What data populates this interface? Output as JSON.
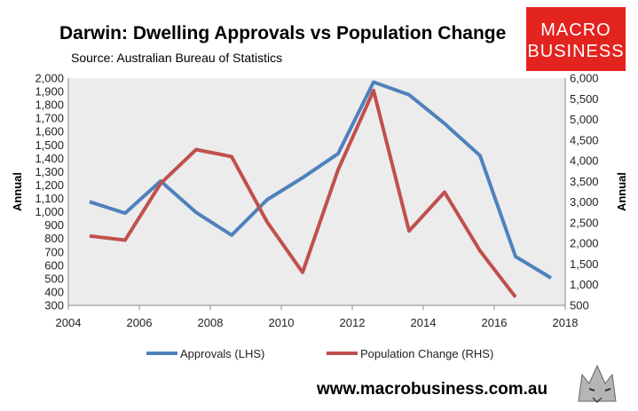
{
  "chart_data": {
    "type": "line",
    "title": "Darwin: Dwelling Approvals vs Population Change",
    "subtitle": "Source: Australian Bureau of Statistics",
    "ylabel_left": "Annual",
    "ylabel_right": "Annual",
    "x_ticks": [
      "2004",
      "2006",
      "2008",
      "2010",
      "2012",
      "2014",
      "2016",
      "2018"
    ],
    "x_range": [
      2004,
      2018
    ],
    "y_left_ticks": [
      "2,000",
      "1,900",
      "1,800",
      "1,700",
      "1,600",
      "1,500",
      "1,400",
      "1,300",
      "1,200",
      "1,100",
      "1,000",
      "900",
      "800",
      "700",
      "600",
      "500",
      "400",
      "300"
    ],
    "y_left_range": [
      300,
      2000
    ],
    "y_right_ticks": [
      "6,000",
      "5,500",
      "5,000",
      "4,500",
      "4,000",
      "3,500",
      "3,000",
      "2,500",
      "2,000",
      "1,500",
      "1,000",
      "500"
    ],
    "y_right_range": [
      500,
      6000
    ],
    "series": [
      {
        "name": "Approvals (LHS)",
        "axis": "left",
        "color": "#4f81bd",
        "x": [
          2004.6,
          2005.6,
          2006.6,
          2007.6,
          2008.6,
          2009.6,
          2010.6,
          2011.6,
          2012.6,
          2013.6,
          2014.6,
          2015.6,
          2016.6,
          2017.6
        ],
        "values": [
          1075,
          990,
          1230,
          995,
          825,
          1090,
          1255,
          1435,
          1970,
          1875,
          1660,
          1420,
          665,
          505
        ]
      },
      {
        "name": "Population Change (RHS)",
        "axis": "right",
        "color": "#c0504d",
        "x": [
          2004.6,
          2005.6,
          2006.6,
          2007.6,
          2008.6,
          2009.6,
          2010.6,
          2011.6,
          2012.6,
          2013.6,
          2014.6,
          2015.6,
          2016.6
        ],
        "values": [
          2180,
          2080,
          3450,
          4270,
          4100,
          2520,
          1300,
          3780,
          5700,
          2300,
          3240,
          1820,
          700
        ]
      }
    ]
  },
  "logo": {
    "line1": "MACRO",
    "line2": "BUSINESS",
    "color": "#e3231e"
  },
  "footer": {
    "website": "www.macrobusiness.com.au"
  }
}
